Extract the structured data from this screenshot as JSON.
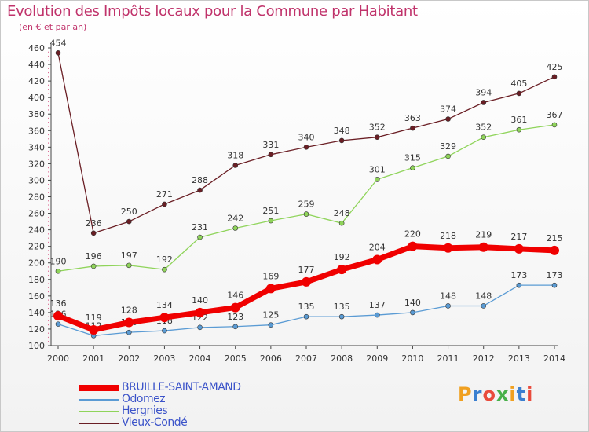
{
  "header": {
    "title": "Evolution des Impôts locaux pour la Commune par Habitant",
    "subtitle": "(en € et par an)"
  },
  "logo": {
    "text": "Proxiti"
  },
  "chart_data": {
    "type": "line",
    "x": [
      "2000",
      "2001",
      "2002",
      "2003",
      "2004",
      "2005",
      "2006",
      "2007",
      "2008",
      "2009",
      "2010",
      "2011",
      "2012",
      "2013",
      "2014"
    ],
    "ylim": [
      100,
      460
    ],
    "yticks": [
      100,
      120,
      140,
      160,
      180,
      200,
      220,
      240,
      260,
      280,
      300,
      320,
      340,
      360,
      380,
      400,
      420,
      440,
      460
    ],
    "grid": false,
    "legend_position": "bottom-left",
    "series": [
      {
        "name": "Vieux-Condé",
        "color": "#6a1e24",
        "values": [
          454,
          236,
          250,
          271,
          288,
          318,
          331,
          340,
          348,
          352,
          363,
          374,
          394,
          405,
          425
        ]
      },
      {
        "name": "Hergnies",
        "color": "#8fd45a",
        "values": [
          190,
          196,
          197,
          192,
          231,
          242,
          251,
          259,
          248,
          301,
          315,
          329,
          352,
          361,
          367
        ]
      },
      {
        "name": "Odomez",
        "color": "#5a9bd4",
        "values": [
          126,
          112,
          116,
          118,
          122,
          123,
          125,
          135,
          135,
          137,
          140,
          148,
          148,
          173,
          173
        ]
      },
      {
        "name": "BRUILLE-SAINT-AMAND",
        "color": "#f00000",
        "values": [
          136,
          119,
          128,
          134,
          140,
          146,
          169,
          177,
          192,
          204,
          220,
          218,
          219,
          217,
          215
        ]
      }
    ],
    "legend_order": [
      "BRUILLE-SAINT-AMAND",
      "Odomez",
      "Hergnies",
      "Vieux-Condé"
    ]
  }
}
